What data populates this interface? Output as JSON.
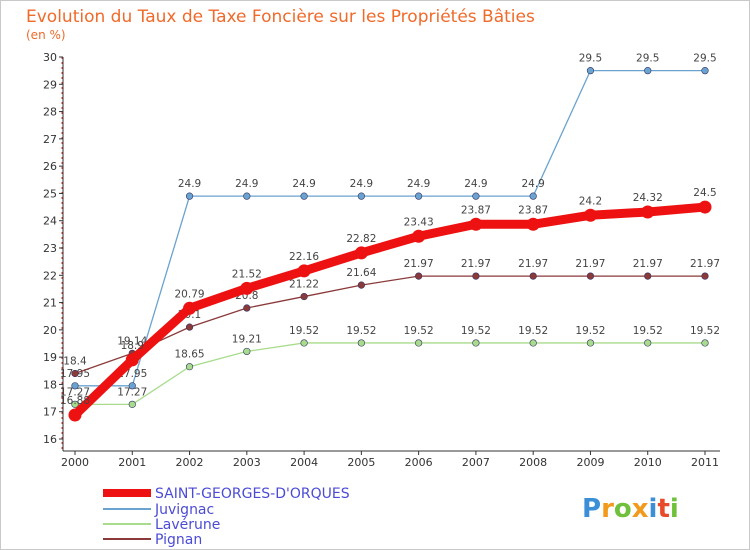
{
  "chart_data": {
    "type": "line",
    "title": "Evolution du Taux de Taxe Foncière sur les Propriétés Bâties",
    "unit_label": "(en %)",
    "x": [
      2000,
      2001,
      2002,
      2003,
      2004,
      2005,
      2006,
      2007,
      2008,
      2009,
      2010,
      2011
    ],
    "ylim": [
      16,
      30
    ],
    "yticks": [
      16,
      17,
      18,
      19,
      20,
      21,
      22,
      23,
      24,
      25,
      26,
      27,
      28,
      29,
      30
    ],
    "grid": false,
    "legend_position": "bottom",
    "series": [
      {
        "name": "SAINT-GEORGES-D'ORQUES",
        "color": "#ee1111",
        "values": [
          16.88,
          18.9,
          20.79,
          21.52,
          22.16,
          22.82,
          23.43,
          23.87,
          23.87,
          24.2,
          24.32,
          24.5
        ],
        "labels": [
          "16.88",
          "18.9",
          "20.79",
          "21.52",
          "22.16",
          "22.82",
          "23.43",
          "23.87",
          "23.87",
          "24.2",
          "24.32",
          "24.5"
        ]
      },
      {
        "name": "Juvignac",
        "color": "#6aa3cf",
        "values": [
          17.95,
          17.95,
          24.9,
          24.9,
          24.9,
          24.9,
          24.9,
          24.9,
          24.9,
          29.5,
          29.5,
          29.5
        ],
        "labels": [
          "17.95",
          "17.95",
          "24.9",
          "24.9",
          "24.9",
          "24.9",
          "24.9",
          "24.9",
          "24.9",
          "29.5",
          "29.5",
          "29.5"
        ]
      },
      {
        "name": "Lavérune",
        "color": "#a8dc8c",
        "values": [
          17.27,
          17.27,
          18.65,
          19.21,
          19.52,
          19.52,
          19.52,
          19.52,
          19.52,
          19.52,
          19.52,
          19.52
        ],
        "labels": [
          "17.27",
          "17.27",
          "18.65",
          "19.21",
          "19.52",
          "19.52",
          "19.52",
          "19.52",
          "19.52",
          "19.52",
          "19.52",
          "19.52"
        ]
      },
      {
        "name": "Pignan",
        "color": "#8b3a3a",
        "values": [
          18.4,
          19.14,
          20.1,
          20.8,
          21.22,
          21.64,
          21.97,
          21.97,
          21.97,
          21.97,
          21.97,
          21.97
        ],
        "labels": [
          "18.4",
          "19.14",
          "20.1",
          "20.8",
          "21.22",
          "21.64",
          "21.97",
          "21.97",
          "21.97",
          "21.97",
          "21.97",
          "21.97"
        ]
      }
    ]
  },
  "logo": {
    "text": "Proxiti"
  }
}
